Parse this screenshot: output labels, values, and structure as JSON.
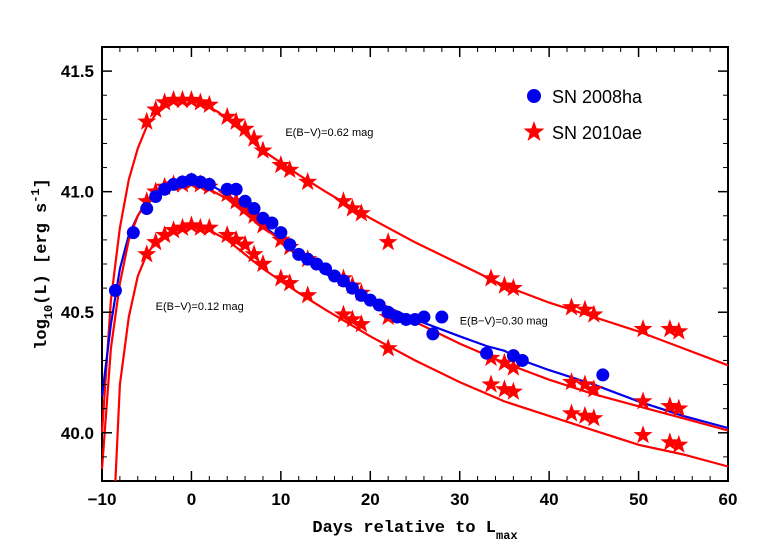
{
  "chart_data": {
    "type": "scatter",
    "xlabel": "Days relative to L",
    "xlabel_sub": "max",
    "ylabel": "log",
    "ylabel_sub": "10",
    "ylabel_rest": "(L) [erg s",
    "ylabel_sup": "-1",
    "ylabel_end": "]",
    "xlim": [
      -10,
      60
    ],
    "ylim": [
      39.8,
      41.6
    ],
    "xticks": [
      -10,
      0,
      10,
      20,
      30,
      40,
      50,
      60
    ],
    "xtick_labels": [
      "−10",
      "0",
      "10",
      "20",
      "30",
      "40",
      "50",
      "60"
    ],
    "yticks": [
      40.0,
      40.5,
      41.0,
      41.5
    ],
    "ytick_labels": [
      "40.0",
      "40.5",
      "41.0",
      "41.5"
    ],
    "legend_position": "top-right",
    "colors": {
      "sn2008ha": "#0000ee",
      "sn2010ae": "#ff0000",
      "curve_blue": "#0000ee",
      "curve_red": "#ff0000"
    },
    "series": [
      {
        "name": "SN 2008ha",
        "marker": "circle",
        "points": [
          [
            -8.5,
            40.59
          ],
          [
            -6.5,
            40.83
          ],
          [
            -5,
            40.93
          ],
          [
            -4,
            40.98
          ],
          [
            -3,
            41.01
          ],
          [
            -2,
            41.03
          ],
          [
            -1,
            41.04
          ],
          [
            0,
            41.05
          ],
          [
            1,
            41.04
          ],
          [
            2,
            41.03
          ],
          [
            4,
            41.01
          ],
          [
            5,
            41.01
          ],
          [
            6,
            40.96
          ],
          [
            7,
            40.93
          ],
          [
            8,
            40.89
          ],
          [
            9,
            40.87
          ],
          [
            10,
            40.83
          ],
          [
            11,
            40.78
          ],
          [
            12,
            40.74
          ],
          [
            13,
            40.72
          ],
          [
            14,
            40.7
          ],
          [
            15,
            40.68
          ],
          [
            16,
            40.65
          ],
          [
            17,
            40.63
          ],
          [
            18,
            40.6
          ],
          [
            19,
            40.57
          ],
          [
            20,
            40.55
          ],
          [
            21,
            40.53
          ],
          [
            22,
            40.5
          ],
          [
            23,
            40.48
          ],
          [
            24,
            40.47
          ],
          [
            25,
            40.47
          ],
          [
            26,
            40.48
          ],
          [
            27,
            40.41
          ],
          [
            28,
            40.48
          ],
          [
            33,
            40.33
          ],
          [
            36,
            40.32
          ],
          [
            37,
            40.3
          ],
          [
            46,
            40.24
          ]
        ]
      },
      {
        "name": "SN 2010ae",
        "marker": "star",
        "points": [
          [
            -5,
            41.29
          ],
          [
            -4,
            41.34
          ],
          [
            -3,
            41.37
          ],
          [
            -2,
            41.38
          ],
          [
            -1,
            41.38
          ],
          [
            0,
            41.38
          ],
          [
            1,
            41.37
          ],
          [
            2,
            41.36
          ],
          [
            4,
            41.31
          ],
          [
            5,
            41.29
          ],
          [
            6,
            41.26
          ],
          [
            7,
            41.22
          ],
          [
            8,
            41.17
          ],
          [
            10,
            41.11
          ],
          [
            11,
            41.09
          ],
          [
            13,
            41.04
          ],
          [
            17,
            40.96
          ],
          [
            18,
            40.93
          ],
          [
            19,
            40.91
          ],
          [
            22,
            40.79
          ],
          [
            33.5,
            40.64
          ],
          [
            35,
            40.61
          ],
          [
            36,
            40.6
          ],
          [
            42.5,
            40.52
          ],
          [
            44,
            40.51
          ],
          [
            45,
            40.49
          ],
          [
            50.5,
            40.43
          ],
          [
            53.5,
            40.43
          ],
          [
            54.5,
            40.42
          ],
          [
            -5,
            40.96
          ],
          [
            -4,
            41.0
          ],
          [
            -3,
            41.02
          ],
          [
            -2,
            41.03
          ],
          [
            -1,
            41.03
          ],
          [
            0,
            41.04
          ],
          [
            1,
            41.03
          ],
          [
            2,
            41.02
          ],
          [
            4,
            40.99
          ],
          [
            5,
            40.96
          ],
          [
            6,
            40.93
          ],
          [
            7,
            40.9
          ],
          [
            8,
            40.86
          ],
          [
            10,
            40.8
          ],
          [
            11,
            40.77
          ],
          [
            13,
            40.72
          ],
          [
            17,
            40.64
          ],
          [
            18,
            40.61
          ],
          [
            19,
            40.58
          ],
          [
            22,
            40.48
          ],
          [
            33.5,
            40.31
          ],
          [
            35,
            40.29
          ],
          [
            36,
            40.27
          ],
          [
            42.5,
            40.21
          ],
          [
            44,
            40.2
          ],
          [
            45,
            40.18
          ],
          [
            50.5,
            40.13
          ],
          [
            53.5,
            40.11
          ],
          [
            54.5,
            40.1
          ],
          [
            -5,
            40.74
          ],
          [
            -4,
            40.79
          ],
          [
            -3,
            40.82
          ],
          [
            -2,
            40.84
          ],
          [
            -1,
            40.85
          ],
          [
            0,
            40.86
          ],
          [
            1,
            40.85
          ],
          [
            2,
            40.85
          ],
          [
            4,
            40.82
          ],
          [
            5,
            40.8
          ],
          [
            6,
            40.78
          ],
          [
            7,
            40.74
          ],
          [
            8,
            40.7
          ],
          [
            10,
            40.64
          ],
          [
            11,
            40.62
          ],
          [
            13,
            40.57
          ],
          [
            17,
            40.49
          ],
          [
            18,
            40.47
          ],
          [
            19,
            40.45
          ],
          [
            22,
            40.35
          ],
          [
            33.5,
            40.2
          ],
          [
            35,
            40.18
          ],
          [
            36,
            40.17
          ],
          [
            42.5,
            40.08
          ],
          [
            44,
            40.07
          ],
          [
            45,
            40.06
          ],
          [
            50.5,
            39.99
          ],
          [
            53.5,
            39.96
          ],
          [
            54.5,
            39.95
          ]
        ]
      }
    ],
    "curves": [
      {
        "color": "curve_red",
        "points": [
          [
            -10,
            40.0
          ],
          [
            -9,
            40.55
          ],
          [
            -8,
            40.85
          ],
          [
            -7,
            41.05
          ],
          [
            -6,
            41.18
          ],
          [
            -5,
            41.27
          ],
          [
            -4,
            41.32
          ],
          [
            -3,
            41.35
          ],
          [
            -2,
            41.37
          ],
          [
            -1,
            41.38
          ],
          [
            0,
            41.38
          ],
          [
            1,
            41.37
          ],
          [
            2,
            41.35
          ],
          [
            3,
            41.33
          ],
          [
            4,
            41.3
          ],
          [
            5,
            41.27
          ],
          [
            6,
            41.24
          ],
          [
            7,
            41.2
          ],
          [
            8,
            41.17
          ],
          [
            10,
            41.12
          ],
          [
            12,
            41.07
          ],
          [
            15,
            41.0
          ],
          [
            20,
            40.89
          ],
          [
            25,
            40.79
          ],
          [
            30,
            40.7
          ],
          [
            35,
            40.61
          ],
          [
            40,
            40.54
          ],
          [
            45,
            40.48
          ],
          [
            50,
            40.42
          ],
          [
            55,
            40.35
          ],
          [
            60,
            40.28
          ]
        ]
      },
      {
        "color": "curve_blue",
        "points": [
          [
            -10,
            40.15
          ],
          [
            -9,
            40.45
          ],
          [
            -8,
            40.68
          ],
          [
            -7,
            40.82
          ],
          [
            -6,
            40.9
          ],
          [
            -5,
            40.96
          ],
          [
            -4,
            41.0
          ],
          [
            -3,
            41.02
          ],
          [
            -2,
            41.04
          ],
          [
            -1,
            41.05
          ],
          [
            0,
            41.05
          ],
          [
            1,
            41.04
          ],
          [
            2,
            41.03
          ],
          [
            3,
            41.01
          ],
          [
            4,
            40.99
          ],
          [
            5,
            40.96
          ],
          [
            6,
            40.93
          ],
          [
            7,
            40.9
          ],
          [
            8,
            40.86
          ],
          [
            10,
            40.8
          ],
          [
            12,
            40.74
          ],
          [
            15,
            40.66
          ],
          [
            18,
            40.59
          ],
          [
            20,
            40.56
          ],
          [
            22,
            40.52
          ],
          [
            25,
            40.47
          ],
          [
            30,
            40.4
          ],
          [
            33,
            40.36
          ],
          [
            35,
            40.34
          ],
          [
            37,
            40.3
          ],
          [
            40,
            40.26
          ],
          [
            45,
            40.2
          ],
          [
            50,
            40.13
          ],
          [
            55,
            40.07
          ],
          [
            60,
            40.02
          ]
        ]
      },
      {
        "color": "curve_red",
        "points": [
          [
            -10,
            39.85
          ],
          [
            -9,
            40.35
          ],
          [
            -8,
            40.62
          ],
          [
            -7,
            40.8
          ],
          [
            -6,
            40.9
          ],
          [
            -5,
            40.96
          ],
          [
            -4,
            40.99
          ],
          [
            -3,
            41.02
          ],
          [
            -2,
            41.03
          ],
          [
            -1,
            41.04
          ],
          [
            0,
            41.04
          ],
          [
            1,
            41.03
          ],
          [
            2,
            41.01
          ],
          [
            3,
            40.99
          ],
          [
            4,
            40.97
          ],
          [
            5,
            40.94
          ],
          [
            6,
            40.91
          ],
          [
            7,
            40.88
          ],
          [
            8,
            40.85
          ],
          [
            10,
            40.8
          ],
          [
            12,
            40.74
          ],
          [
            15,
            40.67
          ],
          [
            20,
            40.56
          ],
          [
            25,
            40.46
          ],
          [
            30,
            40.37
          ],
          [
            35,
            40.29
          ],
          [
            40,
            40.22
          ],
          [
            45,
            40.16
          ],
          [
            50,
            40.11
          ],
          [
            55,
            40.06
          ],
          [
            60,
            40.01
          ]
        ]
      },
      {
        "color": "curve_red",
        "points": [
          [
            -8.5,
            39.8
          ],
          [
            -8,
            40.2
          ],
          [
            -7,
            40.48
          ],
          [
            -6,
            40.65
          ],
          [
            -5,
            40.74
          ],
          [
            -4,
            40.79
          ],
          [
            -3,
            40.82
          ],
          [
            -2,
            40.84
          ],
          [
            -1,
            40.85
          ],
          [
            0,
            40.86
          ],
          [
            1,
            40.85
          ],
          [
            2,
            40.84
          ],
          [
            3,
            40.82
          ],
          [
            4,
            40.8
          ],
          [
            5,
            40.77
          ],
          [
            6,
            40.74
          ],
          [
            7,
            40.71
          ],
          [
            8,
            40.68
          ],
          [
            10,
            40.63
          ],
          [
            12,
            40.58
          ],
          [
            15,
            40.51
          ],
          [
            20,
            40.4
          ],
          [
            25,
            40.3
          ],
          [
            30,
            40.21
          ],
          [
            35,
            40.13
          ],
          [
            40,
            40.07
          ],
          [
            45,
            40.01
          ],
          [
            50,
            39.95
          ],
          [
            55,
            39.91
          ],
          [
            60,
            39.86
          ]
        ]
      }
    ],
    "annotations": [
      {
        "text": "E(B−V)=0.62 mag",
        "x": 10.5,
        "y": 41.23
      },
      {
        "text": "E(B−V)=0.12 mag",
        "x": -4,
        "y": 40.51
      },
      {
        "text": "E(B−V)=0.30 mag",
        "x": 30,
        "y": 40.45
      }
    ]
  }
}
